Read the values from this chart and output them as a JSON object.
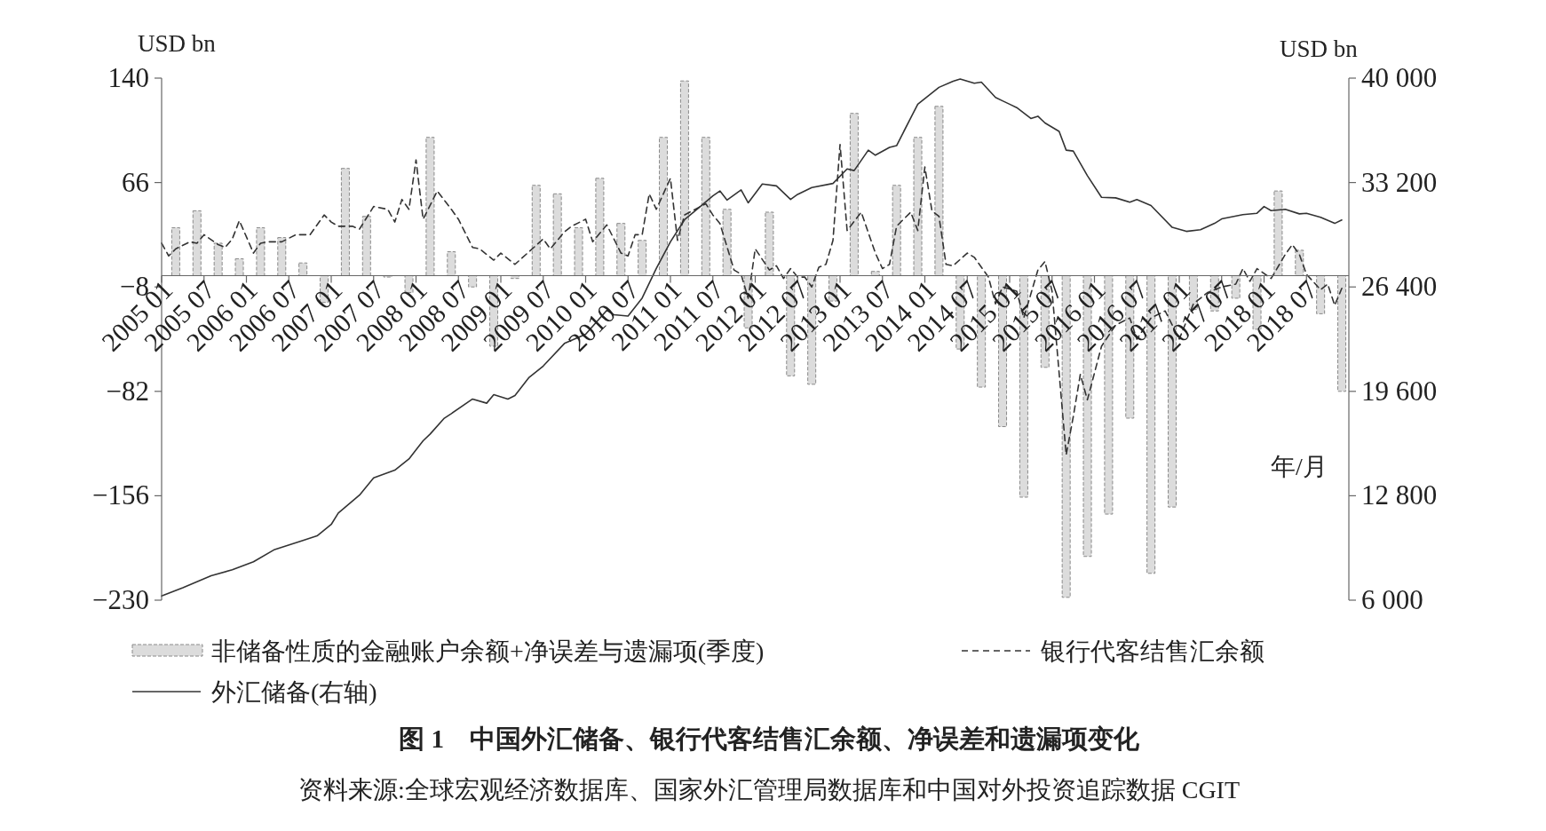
{
  "chart_data": {
    "type": "bar",
    "title": "图 1　中国外汇储备、银行代客结售汇余额、净误差和遗漏项变化",
    "xlabel": "年/月",
    "ylabel": "USD bn",
    "y2label": "USD bn",
    "annotations": [
      "资料来源:全球宏观经济数据库、国家外汇管理局数据库和中国对外投资追踪数据 CGIT"
    ],
    "legend": "bottom",
    "xlim": [
      "2005-01",
      "2019-01"
    ],
    "xticks": [
      {
        "value": "2005-01",
        "label": "2005 01"
      },
      {
        "value": "2005-07",
        "label": "2005 07"
      },
      {
        "value": "2006-01",
        "label": "2006 01"
      },
      {
        "value": "2006-07",
        "label": "2006 07"
      },
      {
        "value": "2007-01",
        "label": "2007 01"
      },
      {
        "value": "2007-07",
        "label": "2007 07"
      },
      {
        "value": "2008-01",
        "label": "2008 01"
      },
      {
        "value": "2008-07",
        "label": "2008 07"
      },
      {
        "value": "2009-01",
        "label": "2009 01"
      },
      {
        "value": "2009-07",
        "label": "2009 07"
      },
      {
        "value": "2010-01",
        "label": "2010 01"
      },
      {
        "value": "2010-07",
        "label": "2010 07"
      },
      {
        "value": "2011-01",
        "label": "2011 01"
      },
      {
        "value": "2011-07",
        "label": "2011 07"
      },
      {
        "value": "2012-01",
        "label": "2012 01"
      },
      {
        "value": "2012-07",
        "label": "2012 07"
      },
      {
        "value": "2013-01",
        "label": "2013 01"
      },
      {
        "value": "2013-07",
        "label": "2013 07"
      },
      {
        "value": "2014-01",
        "label": "2014 01"
      },
      {
        "value": "2014-07",
        "label": "2014 07"
      },
      {
        "value": "2015-01",
        "label": "2015 01"
      },
      {
        "value": "2015-07",
        "label": "2015 07"
      },
      {
        "value": "2016-01",
        "label": "2016 01"
      },
      {
        "value": "2016-07",
        "label": "2016 07"
      },
      {
        "value": "2017-01",
        "label": "2017 01"
      },
      {
        "value": "2017-07",
        "label": "2017 07"
      },
      {
        "value": "2018-01",
        "label": "2018 01"
      },
      {
        "value": "2018-07",
        "label": "2018 07"
      }
    ],
    "ylim": [
      -230,
      140
    ],
    "yticks": [
      -230,
      -156,
      -82,
      -8,
      66,
      140
    ],
    "y2lim": [
      6000,
      40000
    ],
    "y2ticks": [
      {
        "value": 6000,
        "label": "6 000"
      },
      {
        "value": 12800,
        "label": "12 800"
      },
      {
        "value": 19600,
        "label": "19 600"
      },
      {
        "value": 26400,
        "label": "26 400"
      },
      {
        "value": 33200,
        "label": "33 200"
      },
      {
        "value": 40000,
        "label": "40 000"
      }
    ],
    "series": [
      {
        "name": "非储备性质的金融账户余额+净误差与遗漏项(季度)",
        "type": "bar",
        "color": "#dcdcdc",
        "x": [
          "2005-03",
          "2005-06",
          "2005-09",
          "2005-12",
          "2006-03",
          "2006-06",
          "2006-09",
          "2006-12",
          "2007-03",
          "2007-06",
          "2007-09",
          "2007-12",
          "2008-03",
          "2008-06",
          "2008-09",
          "2008-12",
          "2009-03",
          "2009-06",
          "2009-09",
          "2009-12",
          "2010-03",
          "2010-06",
          "2010-09",
          "2010-12",
          "2011-03",
          "2011-06",
          "2011-09",
          "2011-12",
          "2012-03",
          "2012-06",
          "2012-09",
          "2012-12",
          "2013-03",
          "2013-06",
          "2013-09",
          "2013-12",
          "2014-03",
          "2014-06",
          "2014-09",
          "2014-12",
          "2015-03",
          "2015-06",
          "2015-09",
          "2015-12",
          "2016-03",
          "2016-06",
          "2016-09",
          "2016-12",
          "2017-03",
          "2017-06",
          "2017-09",
          "2017-12",
          "2018-03",
          "2018-06",
          "2018-09",
          "2018-12"
        ],
        "values": [
          34,
          46,
          23,
          12,
          34,
          27,
          9,
          -19,
          76,
          42,
          -1,
          -12,
          98,
          17,
          -8,
          -50,
          -2,
          64,
          58,
          34,
          69,
          37,
          25,
          98,
          138,
          98,
          47,
          -37,
          45,
          -71,
          -77,
          -18,
          115,
          3,
          64,
          98,
          120,
          -52,
          -79,
          -107,
          -157,
          -65,
          -228,
          -199,
          -169,
          -101,
          -211,
          -164,
          -24,
          -25,
          -16,
          -38,
          60,
          18,
          -27,
          -82
        ]
      },
      {
        "name": "银行代客结售汇余额",
        "type": "line",
        "line_style": "dashed",
        "color": "#333333",
        "x": [
          "2005-01",
          "2005-02",
          "2005-03",
          "2005-05",
          "2005-06",
          "2005-07",
          "2005-09",
          "2005-10",
          "2005-11",
          "2005-12",
          "2006-02",
          "2006-03",
          "2006-04",
          "2006-06",
          "2006-08",
          "2006-09",
          "2006-10",
          "2006-12",
          "2007-01",
          "2007-02",
          "2007-04",
          "2007-05",
          "2007-07",
          "2007-09",
          "2007-10",
          "2007-11",
          "2007-12",
          "2008-01",
          "2008-02",
          "2008-04",
          "2008-06",
          "2008-07",
          "2008-09",
          "2008-10",
          "2008-12",
          "2009-01",
          "2009-03",
          "2009-05",
          "2009-07",
          "2009-08",
          "2009-10",
          "2009-11",
          "2010-01",
          "2010-02",
          "2010-04",
          "2010-06",
          "2010-07",
          "2010-08",
          "2010-09",
          "2010-10",
          "2010-11",
          "2011-01",
          "2011-02",
          "2011-03",
          "2011-06",
          "2011-07",
          "2011-08",
          "2011-10",
          "2011-11",
          "2011-12",
          "2012-01",
          "2012-03",
          "2012-04",
          "2012-05",
          "2012-06",
          "2012-07",
          "2012-08",
          "2012-09",
          "2012-10",
          "2012-11",
          "2012-12",
          "2013-01",
          "2013-02",
          "2013-04",
          "2013-06",
          "2013-07",
          "2013-08",
          "2013-09",
          "2013-11",
          "2013-12",
          "2014-01",
          "2014-02",
          "2014-03",
          "2014-04",
          "2014-05",
          "2014-07",
          "2014-08",
          "2014-10",
          "2014-11",
          "2014-12",
          "2015-02",
          "2015-03",
          "2015-05",
          "2015-06",
          "2015-07",
          "2015-09",
          "2015-10",
          "2015-11",
          "2015-12",
          "2016-02",
          "2016-04",
          "2016-06",
          "2016-07",
          "2016-09",
          "2016-11",
          "2017-01",
          "2017-03",
          "2017-05",
          "2017-07",
          "2017-09",
          "2017-10",
          "2017-11",
          "2017-12",
          "2018-02",
          "2018-04",
          "2018-05",
          "2018-06",
          "2018-07",
          "2018-09",
          "2018-10",
          "2018-11",
          "2018-12"
        ],
        "values": [
          23,
          14,
          19,
          24,
          23,
          29,
          22,
          20,
          26,
          39,
          16,
          23,
          24,
          24,
          29,
          29,
          29,
          43,
          38,
          35,
          35,
          33,
          49,
          47,
          38,
          54,
          47,
          82,
          40,
          60,
          47,
          40,
          20,
          19,
          11,
          16,
          8,
          17,
          26,
          19,
          31,
          35,
          40,
          24,
          36,
          16,
          14,
          29,
          29,
          58,
          47,
          69,
          25,
          43,
          51,
          43,
          37,
          4,
          1,
          -16,
          19,
          4,
          7,
          -2,
          5,
          -1,
          -1,
          -8,
          6,
          8,
          25,
          93,
          32,
          45,
          16,
          5,
          8,
          35,
          45,
          32,
          77,
          46,
          42,
          8,
          7,
          16,
          13,
          -1,
          -20,
          -8,
          -11,
          -30,
          4,
          10,
          -11,
          -127,
          -100,
          -70,
          -88,
          -50,
          -35,
          -30,
          -45,
          -30,
          -25,
          -45,
          -20,
          -12,
          -8,
          -6,
          5,
          -4,
          5,
          -2,
          15,
          22,
          15,
          1,
          -10,
          -6,
          -21,
          -9
        ]
      },
      {
        "name": "外汇储备(右轴)",
        "type": "line",
        "axis": "y2",
        "line_style": "solid",
        "color": "#333333",
        "x": [
          "2005-01",
          "2005-04",
          "2005-08",
          "2005-11",
          "2006-02",
          "2006-05",
          "2006-09",
          "2006-11",
          "2007-01",
          "2007-02",
          "2007-05",
          "2007-07",
          "2007-10",
          "2007-12",
          "2008-02",
          "2008-03",
          "2008-05",
          "2008-06",
          "2008-09",
          "2008-11",
          "2008-12",
          "2009-02",
          "2009-03",
          "2009-05",
          "2009-07",
          "2009-10",
          "2010-01",
          "2010-04",
          "2010-05",
          "2010-07",
          "2010-09",
          "2010-11",
          "2011-01",
          "2011-03",
          "2011-05",
          "2011-07",
          "2011-08",
          "2011-09",
          "2011-11",
          "2011-12",
          "2012-02",
          "2012-04",
          "2012-06",
          "2012-07",
          "2012-09",
          "2012-12",
          "2013-02",
          "2013-03",
          "2013-05",
          "2013-06",
          "2013-08",
          "2013-09",
          "2013-11",
          "2013-12",
          "2014-03",
          "2014-05",
          "2014-06",
          "2014-08",
          "2014-09",
          "2014-11",
          "2014-12",
          "2015-01",
          "2015-02",
          "2015-04",
          "2015-05",
          "2015-06",
          "2015-08",
          "2015-09",
          "2015-10",
          "2015-12",
          "2016-02",
          "2016-04",
          "2016-06",
          "2016-07",
          "2016-09",
          "2016-12",
          "2017-02",
          "2017-04",
          "2017-06",
          "2017-07",
          "2017-10",
          "2017-12",
          "2018-01",
          "2018-02",
          "2018-04",
          "2018-06",
          "2018-07",
          "2018-09",
          "2018-11",
          "2018-12"
        ],
        "values": [
          6270,
          6810,
          7590,
          7980,
          8500,
          9300,
          9890,
          10190,
          10930,
          11670,
          12840,
          13960,
          14470,
          15200,
          16380,
          16820,
          17850,
          18150,
          19100,
          18830,
          19380,
          19100,
          19330,
          20510,
          21250,
          22720,
          23320,
          24880,
          24590,
          24500,
          25680,
          27600,
          29340,
          30780,
          31550,
          32330,
          32650,
          32060,
          32720,
          31880,
          33100,
          32980,
          32100,
          32430,
          32870,
          33140,
          34090,
          33980,
          35310,
          34980,
          35490,
          35600,
          37410,
          38300,
          39400,
          39800,
          39940,
          39670,
          39740,
          38740,
          38520,
          38300,
          38080,
          37370,
          37520,
          37080,
          36530,
          35310,
          35250,
          33650,
          32240,
          32200,
          31920,
          32090,
          31700,
          30280,
          30020,
          30130,
          30540,
          30830,
          31110,
          31200,
          31640,
          31370,
          31460,
          31160,
          31200,
          30940,
          30540,
          30760
        ]
      }
    ]
  }
}
